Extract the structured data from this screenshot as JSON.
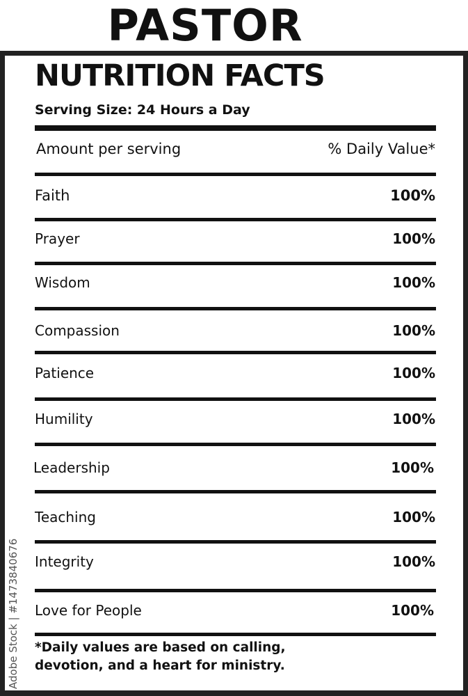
{
  "title": "PASTOR",
  "heading": "NUTRITION FACTS",
  "serving_size": "Serving Size: 24 Hours a Day",
  "header": {
    "amount": "Amount per serving",
    "daily_value": "% Daily Value*"
  },
  "rows": [
    {
      "label": "Faith",
      "value": "100%"
    },
    {
      "label": "Prayer",
      "value": "100%"
    },
    {
      "label": "Wisdom",
      "value": "100%"
    },
    {
      "label": "Compassion",
      "value": "100%"
    },
    {
      "label": "Patience",
      "value": "100%"
    },
    {
      "label": "Humility",
      "value": "100%"
    },
    {
      "label": "Leadership",
      "value": "100%"
    },
    {
      "label": "Teaching",
      "value": "100%"
    },
    {
      "label": "Integrity",
      "value": "100%"
    },
    {
      "label": "Love for People",
      "value": "100%"
    }
  ],
  "footnote": {
    "line1": "*Daily values are based on calling,",
    "line2": "devotion, and a heart for ministry."
  },
  "watermark": "Adobe Stock | #1473840676"
}
